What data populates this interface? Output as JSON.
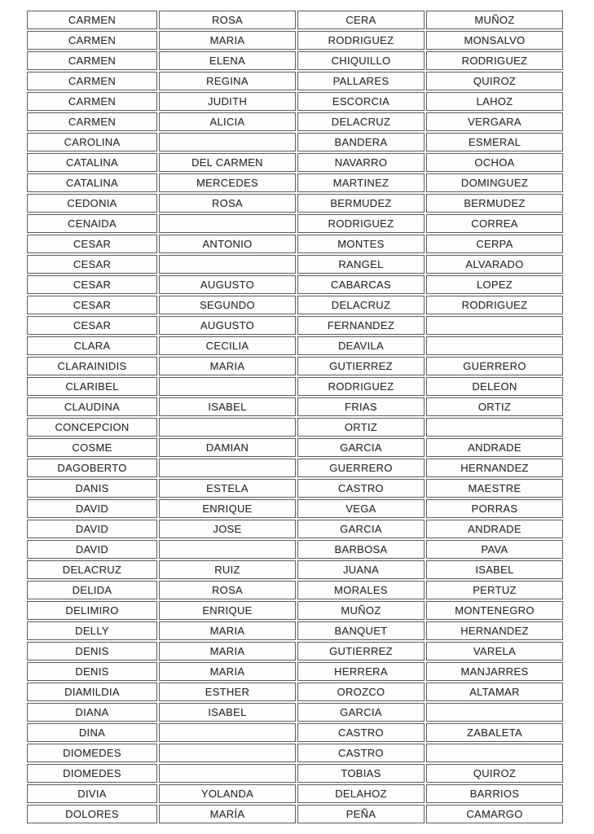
{
  "page": {
    "background_color": "#ffffff",
    "text_color": "#2e2e2e",
    "border_color": "#5c5c5c"
  },
  "table": {
    "columns_count": 4,
    "rows": [
      [
        "CARMEN",
        "ROSA",
        "CERA",
        "MUÑOZ"
      ],
      [
        "CARMEN",
        "MARIA",
        "RODRIGUEZ",
        "MONSALVO"
      ],
      [
        "CARMEN",
        "ELENA",
        "CHIQUILLO",
        "RODRIGUEZ"
      ],
      [
        "CARMEN",
        "REGINA",
        "PALLARES",
        "QUIROZ"
      ],
      [
        "CARMEN",
        "JUDITH",
        "ESCORCIA",
        "LAHOZ"
      ],
      [
        "CARMEN",
        "ALICIA",
        "DELACRUZ",
        "VERGARA"
      ],
      [
        "CAROLINA",
        "",
        "BANDERA",
        "ESMERAL"
      ],
      [
        "CATALINA",
        "DEL CARMEN",
        "NAVARRO",
        "OCHOA"
      ],
      [
        "CATALINA",
        "MERCEDES",
        "MARTINEZ",
        "DOMINGUEZ"
      ],
      [
        "CEDONIA",
        "ROSA",
        "BERMUDEZ",
        "BERMUDEZ"
      ],
      [
        "CENAIDA",
        "",
        "RODRIGUEZ",
        "CORREA"
      ],
      [
        "CESAR",
        "ANTONIO",
        "MONTES",
        "CERPA"
      ],
      [
        "CESAR",
        "",
        "RANGEL",
        "ALVARADO"
      ],
      [
        "CESAR",
        "AUGUSTO",
        "CABARCAS",
        "LOPEZ"
      ],
      [
        "CESAR",
        "SEGUNDO",
        "DELACRUZ",
        "RODRIGUEZ"
      ],
      [
        "CESAR",
        "AUGUSTO",
        "FERNANDEZ",
        ""
      ],
      [
        "CLARA",
        "CECILIA",
        "DEAVILA",
        ""
      ],
      [
        "CLARAINIDIS",
        "MARIA",
        "GUTIERREZ",
        "GUERRERO"
      ],
      [
        "CLARIBEL",
        "",
        "RODRIGUEZ",
        "DELEON"
      ],
      [
        "CLAUDINA",
        "ISABEL",
        "FRIAS",
        "ORTIZ"
      ],
      [
        "CONCEPCION",
        "",
        "ORTIZ",
        ""
      ],
      [
        "COSME",
        "DAMIAN",
        "GARCIA",
        "ANDRADE"
      ],
      [
        "DAGOBERTO",
        "",
        "GUERRERO",
        "HERNANDEZ"
      ],
      [
        "DANIS",
        "ESTELA",
        "CASTRO",
        "MAESTRE"
      ],
      [
        "DAVID",
        "ENRIQUE",
        "VEGA",
        "PORRAS"
      ],
      [
        "DAVID",
        "JOSE",
        "GARCIA",
        "ANDRADE"
      ],
      [
        "DAVID",
        "",
        "BARBOSA",
        "PAVA"
      ],
      [
        "DELACRUZ",
        "RUIZ",
        "JUANA",
        "ISABEL"
      ],
      [
        "DELIDA",
        "ROSA",
        "MORALES",
        "PERTUZ"
      ],
      [
        "DELIMIRO",
        "ENRIQUE",
        "MUÑOZ",
        "MONTENEGRO"
      ],
      [
        "DELLY",
        "MARIA",
        "BANQUET",
        "HERNANDEZ"
      ],
      [
        "DENIS",
        "MARIA",
        "GUTIERREZ",
        "VARELA"
      ],
      [
        "DENIS",
        "MARIA",
        "HERRERA",
        "MANJARRES"
      ],
      [
        "DIAMILDIA",
        "ESTHER",
        "OROZCO",
        "ALTAMAR"
      ],
      [
        "DIANA",
        "ISABEL",
        "GARCIA",
        ""
      ],
      [
        "DINA",
        "",
        "CASTRO",
        "ZABALETA"
      ],
      [
        "DIOMEDES",
        "",
        "CASTRO",
        ""
      ],
      [
        "DIOMEDES",
        "",
        "TOBIAS",
        "QUIROZ"
      ],
      [
        "DIVIA",
        "YOLANDA",
        "DELAHOZ",
        "BARRIOS"
      ],
      [
        "DOLORES",
        "MARÍA",
        "PEÑA",
        "CAMARGO"
      ]
    ]
  }
}
